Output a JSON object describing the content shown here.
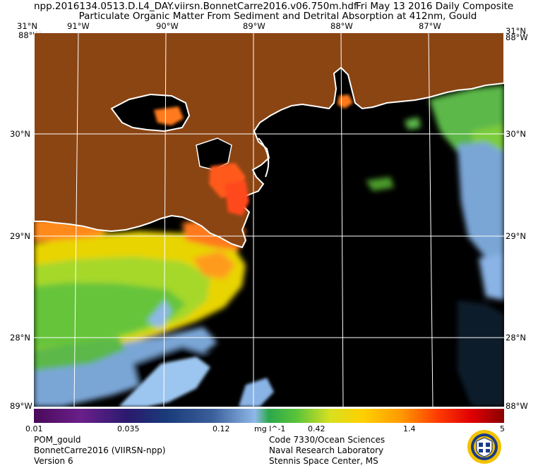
{
  "header": {
    "filename": "npp.2016134.0513.D.L4_DAY.viirsn.BonnetCarre2016.v06.750m.hdf",
    "date_label": "Fri May 13 2016 Daily Composite",
    "product_title": "Particulate Organic Matter From Sediment and Detrital Absorption at 412nm, Gould"
  },
  "axes": {
    "lon_ticks": [
      "91°W",
      "90°W",
      "89°W",
      "88°W",
      "87°W"
    ],
    "lat_ticks": [
      "30°N",
      "29°N",
      "28°N"
    ],
    "corner_top_left": "31°N",
    "corner_top_right": "31°N",
    "corner_top_overlap": "88°W",
    "corner_bottom": "89°W",
    "corner_bottom_right": "88°W"
  },
  "colorbar": {
    "ticks": [
      "0.01",
      "0.035",
      "0.12",
      "0.42",
      "1.4",
      "5"
    ],
    "unit": "mg l^-1"
  },
  "footer": {
    "left": [
      "POM_gould",
      "BonnetCarre2016 (VIIRSN-npp)",
      "Version 6"
    ],
    "right": [
      "Code 7330/Ocean Sciences",
      "Naval Research Laboratory",
      "Stennis Space Center, MS"
    ]
  },
  "colors": {
    "land": "#8B4513",
    "no_data": "#000000",
    "coastline": "#ffffff",
    "grid": "#ffffff"
  }
}
